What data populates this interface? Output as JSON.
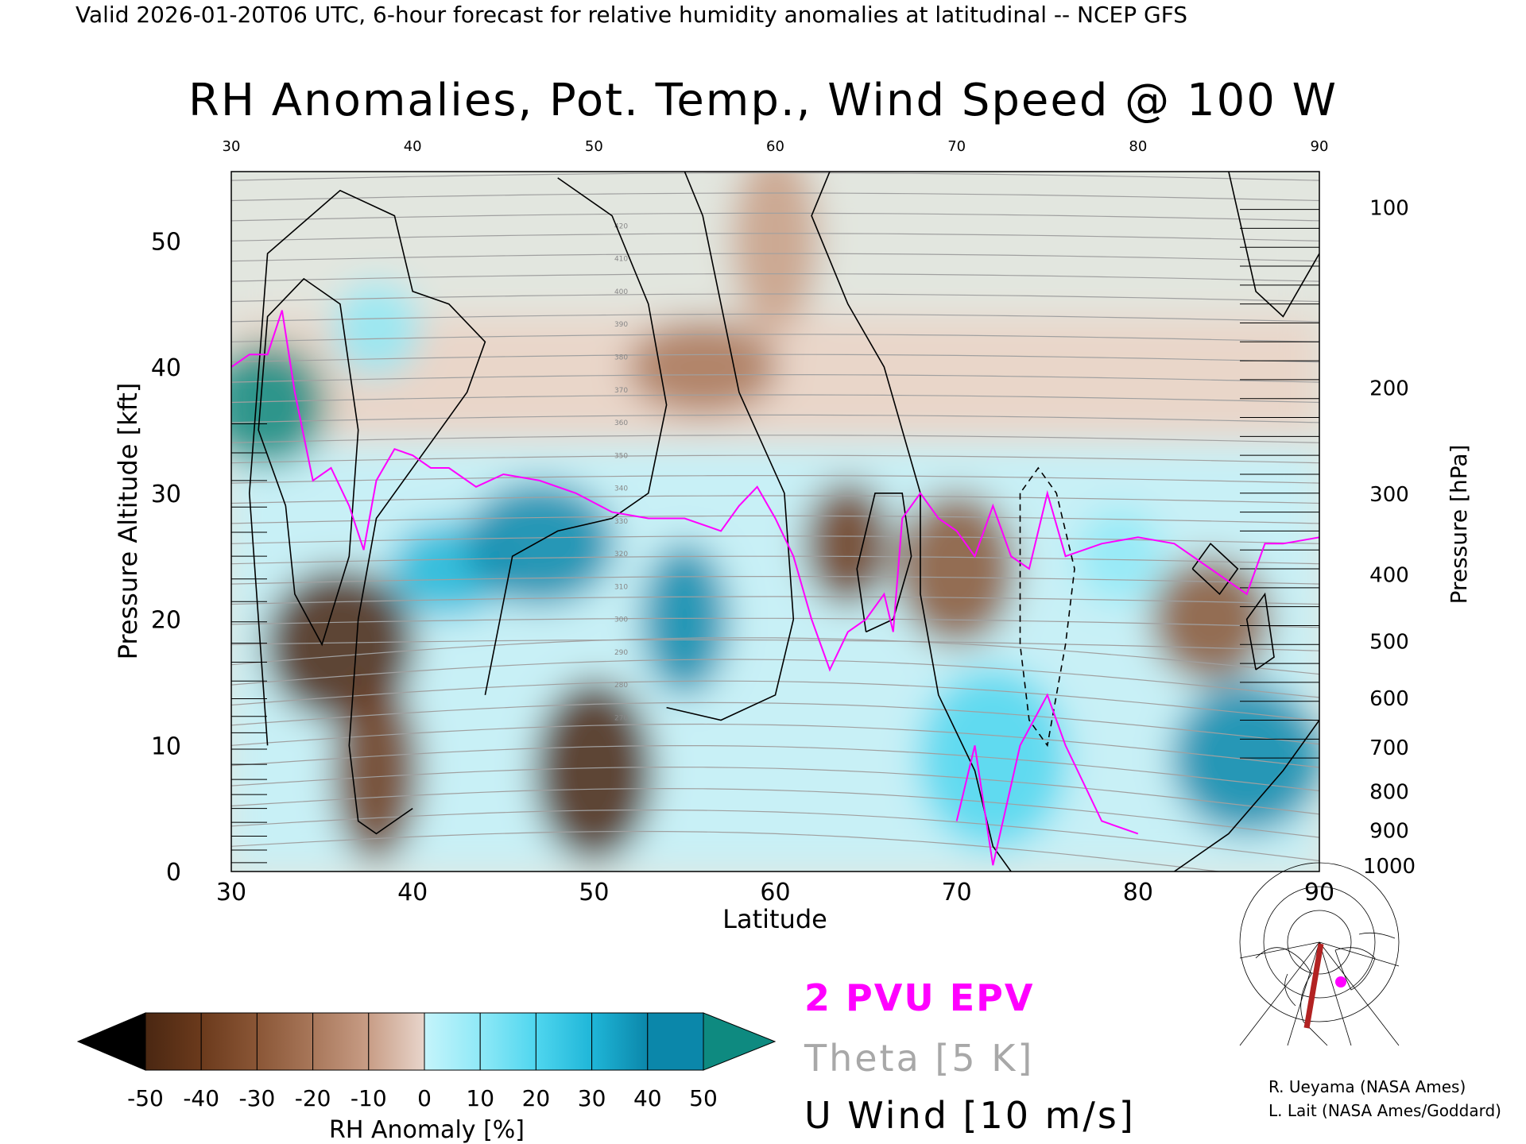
{
  "header": {
    "valid_line": "Valid 2026-01-20T06 UTC, 6-hour forecast for relative humidity anomalies at latitudinal -- NCEP GFS",
    "title": "RH Anomalies, Pot. Temp., Wind Speed @ 100 W"
  },
  "legend": {
    "epv": "2 PVU EPV",
    "theta": "Theta [5 K]",
    "wind": "U Wind [10 m/s]"
  },
  "colorbar": {
    "label": "RH Anomaly [%]",
    "ticks": [
      "-50",
      "-40",
      "-30",
      "-20",
      "-10",
      "0",
      "10",
      "20",
      "30",
      "40",
      "50"
    ],
    "colors": [
      "#4a2712",
      "#6b3a1c",
      "#8a5636",
      "#a8775a",
      "#c89d86",
      "#e8d5cb",
      "#c5f4fb",
      "#8fe9f7",
      "#4fd6ef",
      "#1fb6d8",
      "#0b87aa"
    ],
    "under_color": "#000000",
    "over_color": "#0e8a80"
  },
  "credits": {
    "line1": "R. Ueyama (NASA Ames)",
    "line2": "L. Lait (NASA Ames/Goddard)"
  },
  "colors": {
    "epv": "#ff00ff",
    "theta": "#a0a0a0",
    "wind": "#000000"
  },
  "chart_data": {
    "type": "heatmap",
    "title": "RH Anomalies, Pot. Temp., Wind Speed @ 100 W",
    "xlabel": "Latitude",
    "ylabel": "Pressure Altitude [kft]",
    "y2label": "Pressure [hPa]",
    "xlim": [
      30,
      90
    ],
    "ylim": [
      0,
      55.5
    ],
    "x_ticks": [
      30,
      40,
      50,
      60,
      70,
      80,
      90
    ],
    "y_ticks": [
      0,
      10,
      20,
      30,
      40,
      50
    ],
    "pressure_ticks": [
      {
        "label": "100",
        "kft": 52.7
      },
      {
        "label": "200",
        "kft": 38.4
      },
      {
        "label": "300",
        "kft": 30.0
      },
      {
        "label": "400",
        "kft": 23.6
      },
      {
        "label": "500",
        "kft": 18.3
      },
      {
        "label": "600",
        "kft": 13.8
      },
      {
        "label": "700",
        "kft": 9.9
      },
      {
        "label": "800",
        "kft": 6.4
      },
      {
        "label": "900",
        "kft": 3.3
      },
      {
        "label": "1000",
        "kft": 0.5
      }
    ],
    "rh_anomaly_features": [
      {
        "lat": 38,
        "kft": 43,
        "value": 12
      },
      {
        "lat": 32,
        "kft": 37,
        "value": 55
      },
      {
        "lat": 36,
        "kft": 18,
        "value": -45
      },
      {
        "lat": 38,
        "kft": 8,
        "value": -40
      },
      {
        "lat": 42,
        "kft": 24,
        "value": 35
      },
      {
        "lat": 47,
        "kft": 26,
        "value": 40
      },
      {
        "lat": 55,
        "kft": 20,
        "value": 45
      },
      {
        "lat": 50,
        "kft": 8,
        "value": -45
      },
      {
        "lat": 56,
        "kft": 40,
        "value": -15
      },
      {
        "lat": 64,
        "kft": 26,
        "value": -40
      },
      {
        "lat": 70,
        "kft": 24,
        "value": -25
      },
      {
        "lat": 72,
        "kft": 9,
        "value": 25
      },
      {
        "lat": 79,
        "kft": 25,
        "value": 15
      },
      {
        "lat": 84,
        "kft": 20,
        "value": -30
      },
      {
        "lat": 86,
        "kft": 9,
        "value": 40
      },
      {
        "lat": 60,
        "kft": 50,
        "value": -5
      }
    ],
    "theta_contour_labels": [
      "420",
      "410",
      "400",
      "390",
      "380",
      "370",
      "360",
      "350",
      "340",
      "330",
      "320",
      "310",
      "300",
      "290",
      "280",
      "270"
    ],
    "epv_2pvu": [
      [
        30,
        40
      ],
      [
        31,
        41
      ],
      [
        32,
        41
      ],
      [
        32.8,
        44.5
      ],
      [
        33.5,
        38
      ],
      [
        34.5,
        31
      ],
      [
        35.5,
        32
      ],
      [
        36.5,
        29
      ],
      [
        37.3,
        25.5
      ],
      [
        38,
        31
      ],
      [
        39,
        33.5
      ],
      [
        40,
        33
      ],
      [
        41,
        32
      ],
      [
        42,
        32
      ],
      [
        43.5,
        30.5
      ],
      [
        45,
        31.5
      ],
      [
        47,
        31
      ],
      [
        49,
        30
      ],
      [
        51,
        28.5
      ],
      [
        53,
        28
      ],
      [
        55,
        28
      ],
      [
        57,
        27
      ],
      [
        58,
        29
      ],
      [
        59,
        30.5
      ],
      [
        60,
        28
      ],
      [
        61,
        25
      ],
      [
        62,
        20
      ],
      [
        63,
        16
      ],
      [
        64,
        19
      ],
      [
        65,
        20
      ],
      [
        66,
        22
      ],
      [
        66.5,
        19
      ],
      [
        67,
        28
      ],
      [
        68,
        30
      ],
      [
        69,
        28
      ],
      [
        70,
        27
      ],
      [
        71,
        25
      ],
      [
        72,
        29
      ],
      [
        73,
        25
      ],
      [
        74,
        24
      ],
      [
        75,
        30
      ],
      [
        76,
        25
      ],
      [
        78,
        26
      ],
      [
        80,
        26.5
      ],
      [
        82,
        26
      ],
      [
        84,
        24
      ],
      [
        86,
        22
      ],
      [
        87,
        26
      ],
      [
        88,
        26
      ],
      [
        90,
        26.5
      ]
    ],
    "u_wind_zero_labels": [
      "0",
      "10",
      "20",
      "30",
      "50"
    ]
  }
}
